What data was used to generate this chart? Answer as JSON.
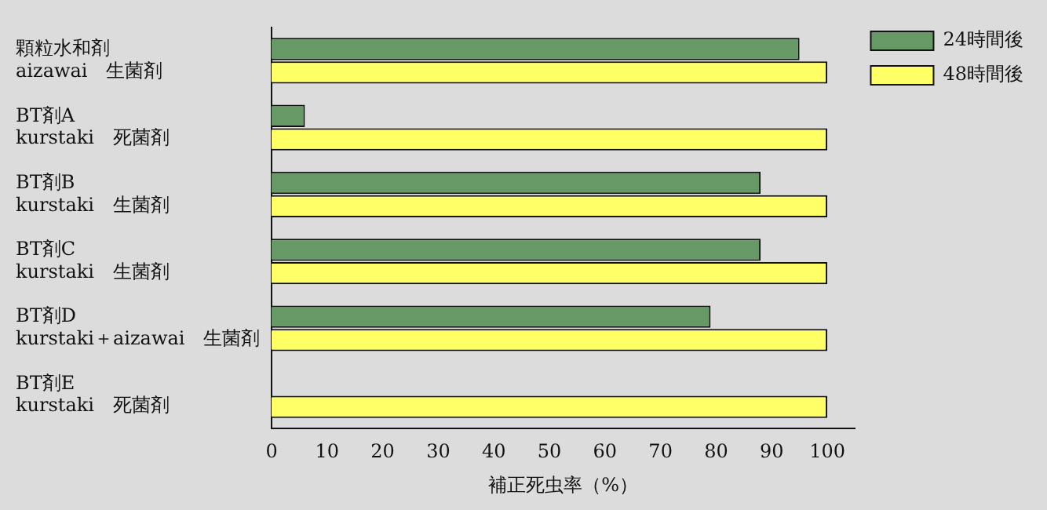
{
  "chart_data": {
    "type": "bar",
    "orientation": "horizontal",
    "xlabel": "補正死虫率（%）",
    "categories": [
      "顆粒水和剤\naizawai　生菌剤",
      "BT剤A\nkurstaki　死菌剤",
      "BT剤B\nkurstaki　生菌剤",
      "BT剤C\nkurstaki　生菌剤",
      "BT剤D\nkurstaki＋aizawai　生菌剤",
      "BT剤E\nkurstaki　死菌剤"
    ],
    "series": [
      {
        "name": "24時間後",
        "color": "#669966",
        "values": [
          95,
          6,
          88,
          88,
          79,
          0
        ]
      },
      {
        "name": "48時間後",
        "color": "#ffff66",
        "values": [
          100,
          100,
          100,
          100,
          100,
          100
        ]
      }
    ],
    "xlim": [
      0,
      105
    ],
    "xticks": [
      0,
      10,
      20,
      30,
      40,
      50,
      60,
      70,
      80,
      90,
      100
    ],
    "grid": false,
    "legend": "top right"
  }
}
